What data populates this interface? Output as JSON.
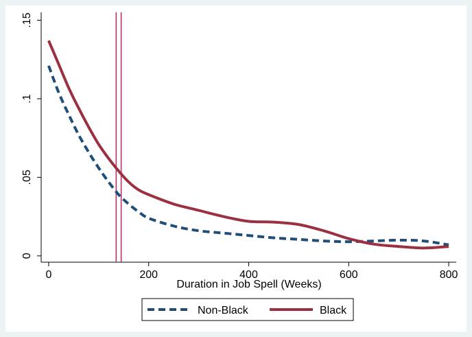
{
  "chart_data": {
    "type": "line",
    "title": "",
    "xlabel": "Duration in Job Spell (Weeks)",
    "ylabel": "",
    "xlim": [
      -15,
      815
    ],
    "ylim": [
      -0.004,
      0.155
    ],
    "x_ticks": [
      0,
      200,
      400,
      600,
      800
    ],
    "x_tick_labels": [
      "0",
      "200",
      "400",
      "600",
      "800"
    ],
    "y_ticks": [
      0,
      0.05,
      0.1,
      0.15
    ],
    "y_tick_labels": [
      "0",
      ".05",
      ".1",
      ".15"
    ],
    "grid": false,
    "legend_position": "bottom",
    "vertical_lines": [
      {
        "x": 135,
        "color": "#b5316a"
      },
      {
        "x": 145,
        "color": "#b5316a"
      }
    ],
    "series": [
      {
        "name": "Non-Black",
        "color": "#1f4e79",
        "dash": "dashed",
        "x": [
          0,
          20,
          40,
          60,
          80,
          100,
          120,
          140,
          160,
          180,
          200,
          250,
          300,
          350,
          400,
          450,
          500,
          550,
          600,
          650,
          700,
          750,
          800
        ],
        "y": [
          0.121,
          0.104,
          0.09,
          0.077,
          0.066,
          0.056,
          0.047,
          0.039,
          0.033,
          0.028,
          0.024,
          0.019,
          0.016,
          0.0145,
          0.013,
          0.0115,
          0.0105,
          0.0095,
          0.009,
          0.0095,
          0.01,
          0.0095,
          0.007
        ]
      },
      {
        "name": "Black",
        "color": "#9b3040",
        "dash": "solid",
        "x": [
          0,
          20,
          40,
          60,
          80,
          100,
          120,
          140,
          160,
          180,
          200,
          250,
          300,
          350,
          400,
          450,
          500,
          550,
          600,
          650,
          700,
          750,
          800
        ],
        "y": [
          0.137,
          0.122,
          0.107,
          0.094,
          0.082,
          0.071,
          0.062,
          0.054,
          0.047,
          0.042,
          0.039,
          0.033,
          0.029,
          0.025,
          0.022,
          0.0215,
          0.02,
          0.016,
          0.011,
          0.0075,
          0.006,
          0.005,
          0.006
        ]
      }
    ]
  }
}
